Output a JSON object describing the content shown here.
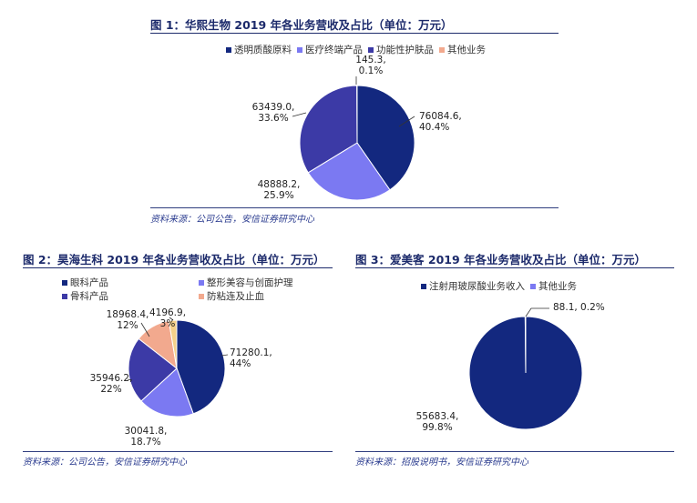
{
  "charts": [
    {
      "title": "图 1：华熙生物 2019 年各业务营收及占比（单位：万元）",
      "source": "资料来源：公司公告，安信证券研究中心"
    },
    {
      "title": "图 2：昊海生科 2019 年各业务营收及占比（单位：万元）",
      "source": "资料来源：公司公告，安信证券研究中心"
    },
    {
      "title": "图 3：爱美客 2019 年各业务营收及占比（单位：万元）",
      "source": "资料来源：招股说明书，安信证券研究中心"
    }
  ],
  "chart_data": [
    {
      "type": "pie",
      "title": "图 1：华熙生物 2019 年各业务营收及占比（单位：万元）",
      "legend_position": "top",
      "slices": [
        {
          "name": "透明质酸原料",
          "value": 76084.6,
          "label": "76084.6,",
          "pct": "40.4%",
          "color": "#13287f"
        },
        {
          "name": "医疗终端产品",
          "value": 48888.2,
          "label": "48888.2,",
          "pct": "25.9%",
          "color": "#7b79f2"
        },
        {
          "name": "功能性护肤品",
          "value": 63439.0,
          "label": "63439.0,",
          "pct": "33.6%",
          "color": "#3c3aa6"
        },
        {
          "name": "其他业务",
          "value": 145.3,
          "label": "145.3,",
          "pct": "0.1%",
          "color": "#f2a98e"
        }
      ]
    },
    {
      "type": "pie",
      "title": "图 2：昊海生科 2019 年各业务营收及占比（单位：万元）",
      "legend_position": "top",
      "slices": [
        {
          "name": "眼科产品",
          "value": 71280.1,
          "label": "71280.1,",
          "pct": "44%",
          "color": "#13287f"
        },
        {
          "name": "整形美容与创面护理",
          "value": 30041.8,
          "label": "30041.8,",
          "pct": "18.7%",
          "color": "#7b79f2"
        },
        {
          "name": "骨科产品",
          "value": 35946.2,
          "label": "35946.2,",
          "pct": "22%",
          "color": "#3c3aa6"
        },
        {
          "name": "防粘连及止血",
          "value": 18968.4,
          "label": "18968.4,",
          "pct": "12%",
          "color": "#f2a98e"
        },
        {
          "name": "",
          "value": 4196.9,
          "label": "4196.9,",
          "pct": "3%",
          "color": "#f4d08a"
        }
      ]
    },
    {
      "type": "pie",
      "title": "图 3：爱美客 2019 年各业务营收及占比（单位：万元）",
      "legend_position": "top",
      "slices": [
        {
          "name": "注射用玻尿酸业务收入",
          "value": 55683.4,
          "label": "55683.4,",
          "pct": "99.8%",
          "color": "#13287f"
        },
        {
          "name": "其他业务",
          "value": 88.1,
          "label": "88.1,",
          "pct": "0.2%",
          "color": "#7b79f2"
        }
      ]
    }
  ]
}
